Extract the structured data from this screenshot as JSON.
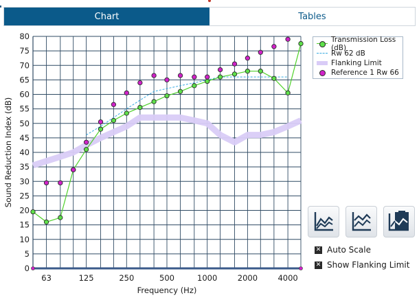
{
  "tabs": [
    {
      "label": "Chart",
      "active": true
    },
    {
      "label": "Tables",
      "active": false
    }
  ],
  "chart_data": {
    "type": "line",
    "xlabel": "Frequency (Hz)",
    "ylabel": "Sound Reduction Index (dB)",
    "ylim": [
      0,
      80
    ],
    "x_scale": "log",
    "x_ticks": [
      "63",
      "125",
      "250",
      "500",
      "1000",
      "2000",
      "4000"
    ],
    "y_ticks": [
      0,
      5,
      10,
      15,
      20,
      25,
      30,
      35,
      40,
      45,
      50,
      55,
      60,
      65,
      70,
      75,
      80
    ],
    "grid": true,
    "legend_position": "top-right",
    "x": [
      50,
      63,
      80,
      100,
      125,
      160,
      200,
      250,
      315,
      400,
      500,
      630,
      800,
      1000,
      1250,
      1600,
      2000,
      2500,
      3150,
      4000,
      5000
    ],
    "series": [
      {
        "name": "Transmission Loss (dB)",
        "style": "line-markers",
        "color": "#4fd12a",
        "marker_fill": "#5ee04a",
        "values": [
          19.5,
          16,
          17.5,
          34,
          41,
          48,
          51,
          53.5,
          55.5,
          57.5,
          59.5,
          61,
          63,
          64.5,
          66,
          67,
          68,
          68,
          65.5,
          60.5,
          77.5
        ]
      },
      {
        "name": "Rw 62 dB",
        "style": "dashed",
        "color": "#35a9e0",
        "x": [
          125,
          160,
          200,
          250,
          315,
          400,
          500,
          630,
          800,
          1000,
          1250,
          1600,
          2000,
          2500,
          3150,
          4000
        ],
        "values": [
          46,
          49,
          52,
          55,
          58,
          61,
          62,
          63,
          64,
          65,
          66,
          66,
          66,
          66,
          66,
          66
        ]
      },
      {
        "name": "Flanking Limit",
        "style": "band",
        "color": "#d9ccf7",
        "values": [
          35.5,
          37,
          38.5,
          40,
          42.5,
          45,
          47,
          49,
          52,
          52,
          52,
          52,
          51,
          50,
          46,
          43.5,
          46,
          46,
          47,
          49,
          51
        ]
      },
      {
        "name": "Reference 1 Rw 66",
        "style": "markers",
        "color": "#d022c8",
        "values": [
          null,
          29.5,
          29.5,
          34,
          43.5,
          50.5,
          56.5,
          60.5,
          64,
          66.5,
          65,
          66.5,
          66,
          66,
          68.5,
          70.5,
          72.5,
          74.5,
          76.5,
          79,
          null
        ]
      }
    ]
  },
  "icons": {
    "btn1": "chart-zoom-icon",
    "btn2": "chart-compare-icon",
    "btn3": "chart-export-icon"
  },
  "options": {
    "auto_scale": {
      "label": "Auto Scale",
      "checked": true
    },
    "show_flanking": {
      "label": "Show Flanking Limit",
      "checked": true
    }
  }
}
